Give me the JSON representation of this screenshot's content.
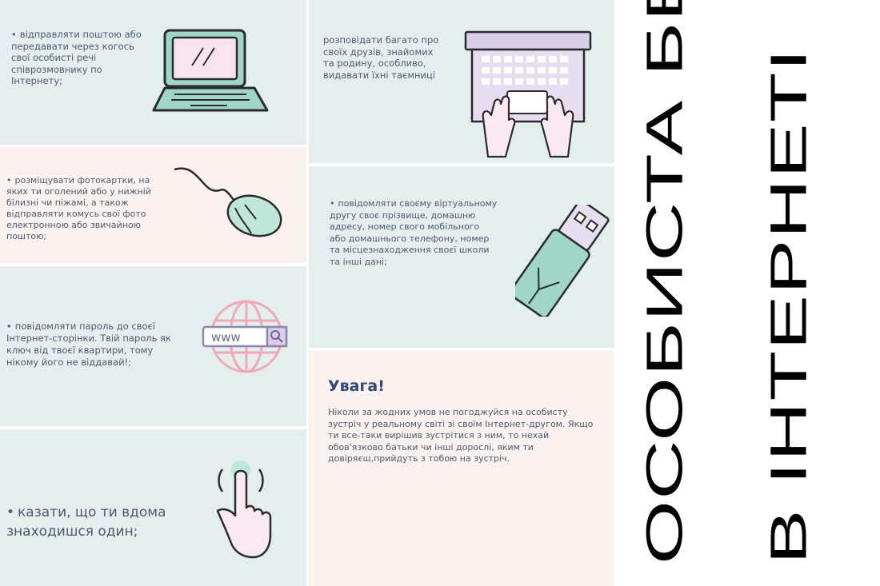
{
  "left_panels": [
    {
      "text": "відправляти поштою або передавати через когось свої особисті речі співрозмовнику по Інтернету;",
      "icon": "laptop-icon"
    },
    {
      "text": "розміщувати фотокартки, на яких ти оголений або у нижній білизні чи піжамі, а також відправляти комусь свої фото електронною або звичайною поштою;",
      "icon": "computer-mouse-icon"
    },
    {
      "text": "повідомляти пароль до своєї Інтернет-сторінки. Твій пароль як ключ від твоєї квартири, тому нікому його не віддавай!;",
      "icon": "www-globe-icon",
      "www": "www"
    },
    {
      "text": "казати, що ти вдома знаходишся один;",
      "icon": "touch-hand-icon"
    }
  ],
  "right_panels": [
    {
      "text": "розповідати багато про своїх друзів, знайомих та родину, особливо, видавати їхні таємниці",
      "icon": "typing-keyboard-icon"
    },
    {
      "text": "повідомляти своєму віртуальному другу своє прізвище, домашню адресу, номер свого мобільного або домашнього телефону, номер та місцезнаходження своєї школи та інші дані;",
      "icon": "usb-drive-icon"
    }
  ],
  "warning": {
    "title": "Увага!",
    "text": "Ніколи за жодних умов не погоджуйся на особисту зустріч у реальному світі зі своїм Інтернет-другом. Якщо ти все-таки вирішив зустрітися з ним, то нехай обов'язково батьки чи інші дорослі, яким ти довіряєш,прийдуть з тобою на зустріч."
  },
  "title": {
    "line1": "ОСОБИСТА БЕЗПЕКА",
    "line2": "В ІНТЕРНЕТІ"
  },
  "colors": {
    "mint_bg": "#e3efef",
    "peach_bg": "#fbf1ee",
    "mint_accent": "#9fd6c8",
    "lilac_accent": "#d9cdea",
    "pink_accent": "#f1a9b6",
    "outline": "#2b2b2b",
    "heading_blue": "#2f4a78"
  }
}
